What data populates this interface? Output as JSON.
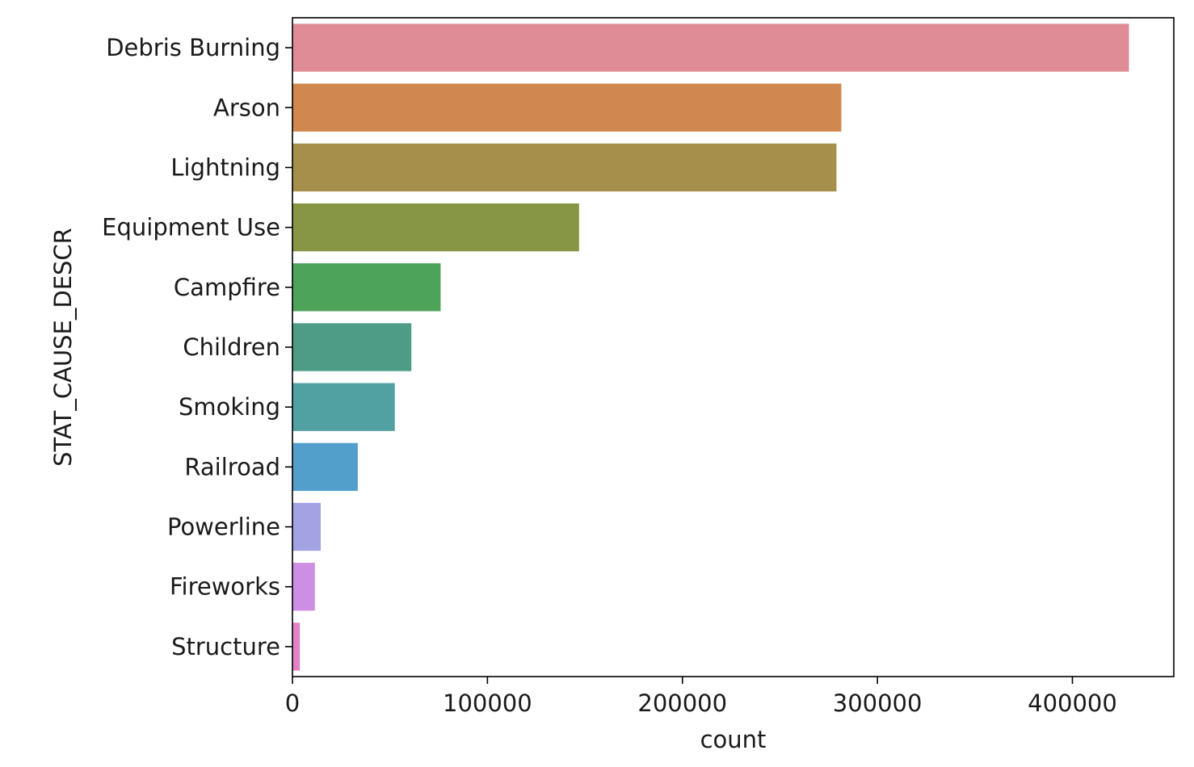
{
  "chart_data": {
    "type": "bar",
    "orientation": "horizontal",
    "categories": [
      "Debris Burning",
      "Arson",
      "Lightning",
      "Equipment Use",
      "Campfire",
      "Children",
      "Smoking",
      "Railroad",
      "Powerline",
      "Fireworks",
      "Structure"
    ],
    "values": [
      429000,
      281500,
      279000,
      147000,
      76000,
      61000,
      52500,
      33500,
      14500,
      11500,
      3800
    ],
    "colors": [
      "#df8c96",
      "#d0884f",
      "#a58f4a",
      "#869644",
      "#4ea35a",
      "#4e9c86",
      "#51a0a2",
      "#529fcc",
      "#a3a2e3",
      "#ce8ee3",
      "#e283c6"
    ],
    "xlabel": "count",
    "ylabel": "STAT_CAUSE_DESCR",
    "xlim": [
      0,
      452000
    ],
    "xticks": [
      0,
      100000,
      200000,
      300000,
      400000
    ],
    "xtick_labels": [
      "0",
      "100000",
      "200000",
      "300000",
      "400000"
    ],
    "grid": false
  }
}
